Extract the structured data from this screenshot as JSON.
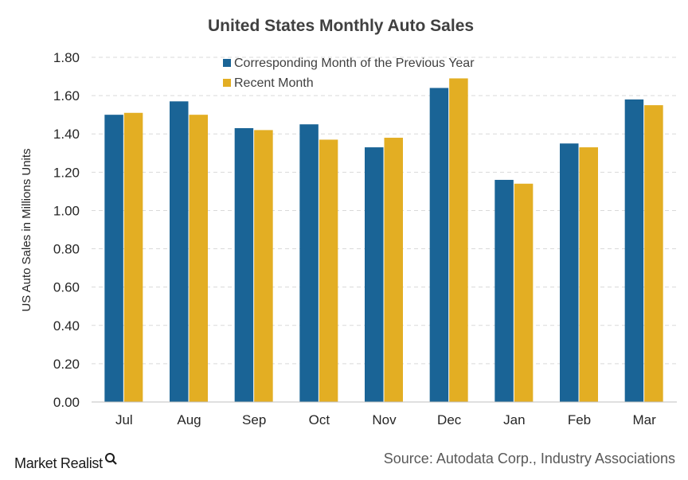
{
  "chart_data": {
    "type": "bar",
    "title": "United States Monthly Auto Sales",
    "xlabel": "",
    "ylabel": "US Auto Sales in Millions Units",
    "ylim": [
      0,
      1.8
    ],
    "yticks": [
      "0.00",
      "0.20",
      "0.40",
      "0.60",
      "0.80",
      "1.00",
      "1.20",
      "1.40",
      "1.60",
      "1.80"
    ],
    "categories": [
      "Jul",
      "Aug",
      "Sep",
      "Oct",
      "Nov",
      "Dec",
      "Jan",
      "Feb",
      "Mar"
    ],
    "series": [
      {
        "name": "Corresponding Month of the Previous Year",
        "color": "#1a6496",
        "values": [
          1.5,
          1.57,
          1.43,
          1.45,
          1.33,
          1.64,
          1.16,
          1.35,
          1.58
        ]
      },
      {
        "name": "Recent Month",
        "color": "#e3ae23",
        "values": [
          1.51,
          1.5,
          1.42,
          1.37,
          1.38,
          1.69,
          1.14,
          1.33,
          1.55
        ]
      }
    ],
    "grid": true,
    "legend": "top-center"
  },
  "footer": {
    "brand": "Market Realist",
    "brand_icon": "magnifier-icon",
    "source": "Source: Autodata Corp., Industry Associations"
  }
}
